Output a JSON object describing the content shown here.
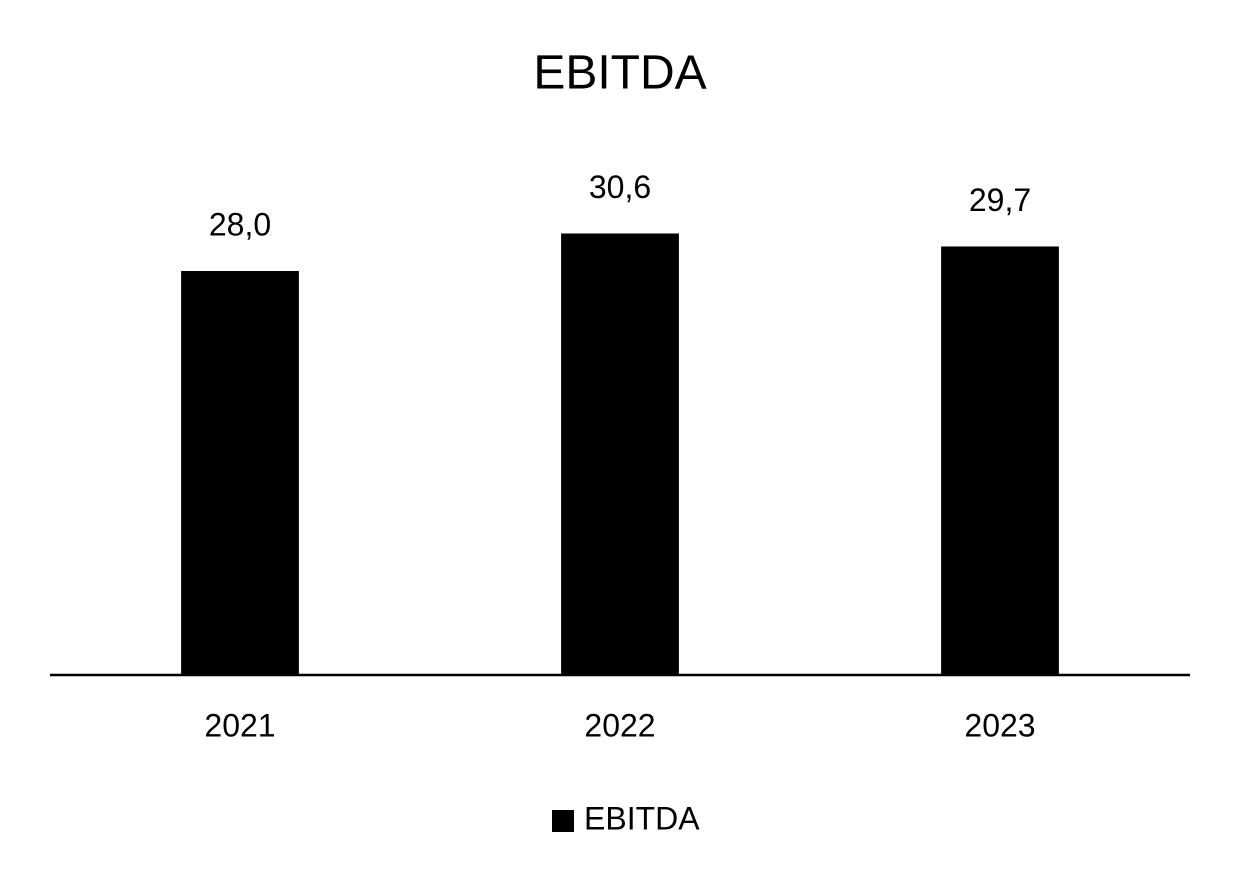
{
  "chart_data": {
    "type": "bar",
    "title": "EBITDA",
    "categories": [
      "2021",
      "2022",
      "2023"
    ],
    "series": [
      {
        "name": "EBITDA",
        "color": "#000000",
        "values": [
          28.0,
          30.6,
          29.7
        ],
        "value_labels": [
          "28,0",
          "30,6",
          "29,7"
        ]
      }
    ],
    "ylim": [
      0,
      35
    ],
    "legend": "bottom"
  }
}
